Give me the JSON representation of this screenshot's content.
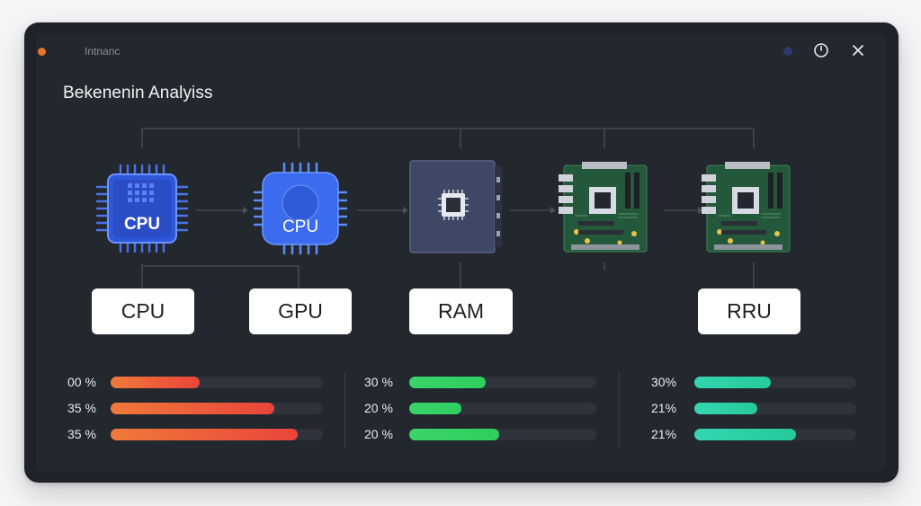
{
  "app": {
    "name": "Intnanc",
    "title": "Bekenenin Analyiss"
  },
  "colors": {
    "accent_orange": "#e8732a",
    "bar_red": "#ee5a3e",
    "bar_green": "#37d168",
    "bar_teal": "#2fd1a8",
    "window_bg": "#1f2329"
  },
  "window_controls": [
    {
      "name": "status-dot"
    },
    {
      "name": "help-icon"
    },
    {
      "name": "close-icon"
    }
  ],
  "components": [
    {
      "icon": "cpu-chip-icon",
      "chip_text": "CPU",
      "label": "CPU"
    },
    {
      "icon": "gpu-chip-icon",
      "chip_text": "CPU",
      "label": "GPU"
    },
    {
      "icon": "ram-chip-icon",
      "chip_text": "",
      "label": "RAM"
    },
    {
      "icon": "motherboard-icon",
      "chip_text": "",
      "label": ""
    },
    {
      "icon": "motherboard-icon",
      "chip_text": "",
      "label": "RRU"
    }
  ],
  "metrics": [
    {
      "group": "left",
      "rows": [
        {
          "label": "00 %",
          "value": 0.42
        },
        {
          "label": "35 %",
          "value": 0.77
        },
        {
          "label": "35 %",
          "value": 0.88
        }
      ]
    },
    {
      "group": "middle",
      "rows": [
        {
          "label": "30 %",
          "value": 0.41
        },
        {
          "label": "20 %",
          "value": 0.28
        },
        {
          "label": "20 %",
          "value": 0.48
        }
      ]
    },
    {
      "group": "right",
      "rows": [
        {
          "label": "30%",
          "value": 0.47
        },
        {
          "label": "21%",
          "value": 0.39
        },
        {
          "label": "21%",
          "value": 0.63
        }
      ]
    }
  ]
}
